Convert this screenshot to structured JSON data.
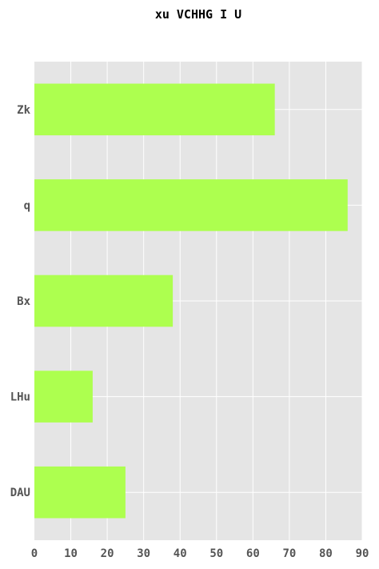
{
  "chart_data": {
    "type": "bar",
    "orientation": "horizontal",
    "title": "xu VCHHG I U",
    "xlabel": "",
    "ylabel": "",
    "categories": [
      "Zk",
      "q",
      "Bx",
      "LHu",
      "DAU"
    ],
    "values": [
      66,
      86,
      38,
      16,
      25
    ],
    "xlim": [
      0,
      90
    ],
    "xticks": [
      0,
      10,
      20,
      30,
      40,
      50,
      60,
      70,
      80,
      90
    ],
    "grid": true,
    "legend": "none",
    "colors": {
      "bar": "#adff4f",
      "plot_background": "#e5e5e5",
      "grid": "#ffffff"
    }
  }
}
